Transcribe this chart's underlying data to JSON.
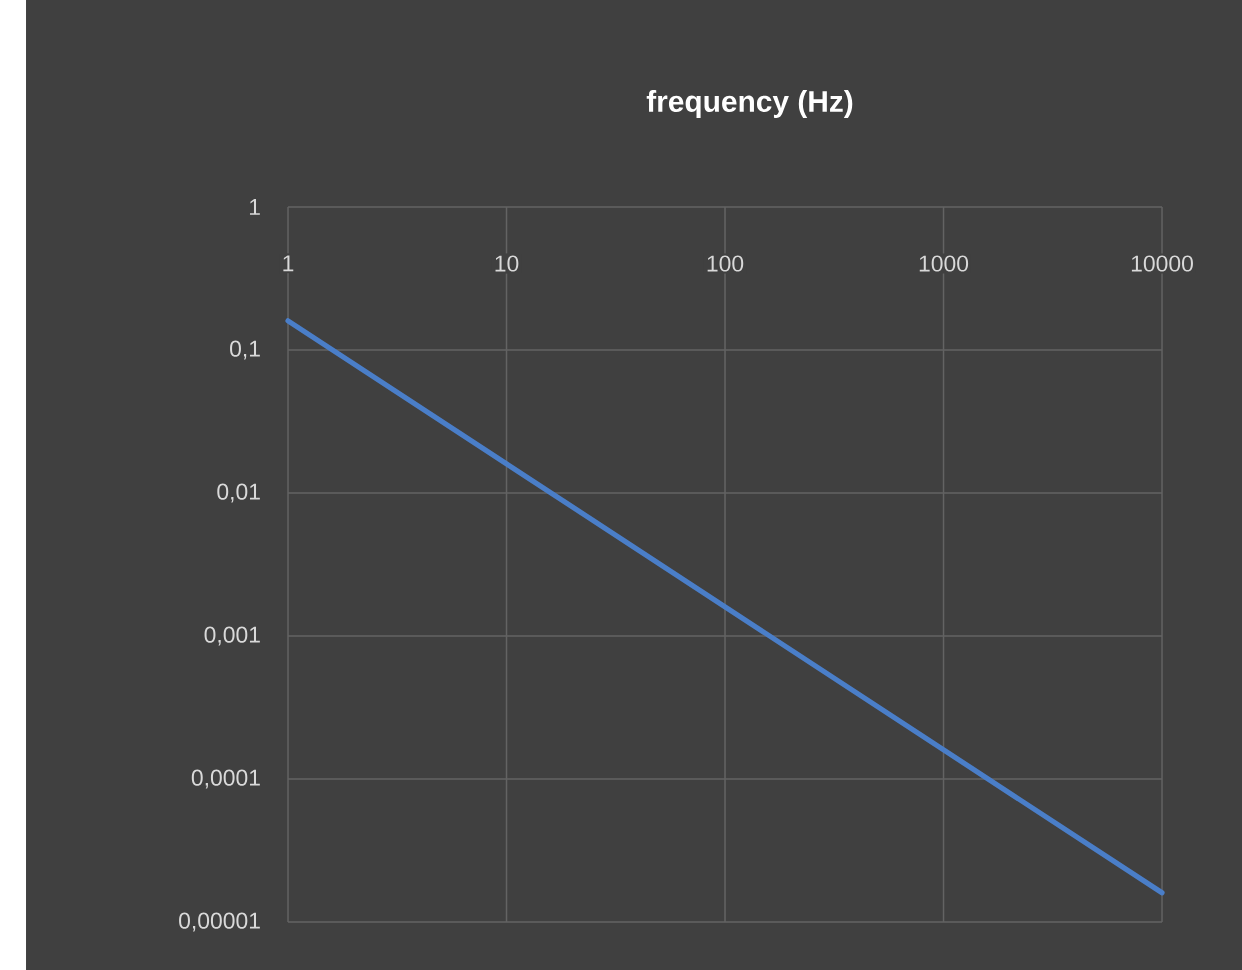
{
  "chart_data": {
    "type": "line",
    "title": "frequency (Hz)",
    "series": [
      {
        "color": "#4a7ec8",
        "x": [
          1,
          10000
        ],
        "values": [
          0.16,
          1.6e-05
        ]
      }
    ],
    "xlim": [
      1,
      10000
    ],
    "ylim": [
      1e-05,
      1
    ],
    "xticks": [
      1,
      10,
      100,
      1000,
      10000
    ],
    "yticks": [
      1,
      {
        "value": 0.1,
        "label": "0,1"
      },
      {
        "value": 0.01,
        "label": "0,01"
      },
      {
        "value": 0.001,
        "label": "0,001"
      },
      {
        "value": 0.0001,
        "label": "0,0001"
      },
      {
        "value": 1e-05,
        "label": "0,00001"
      }
    ],
    "log": "xy",
    "grid": true
  }
}
